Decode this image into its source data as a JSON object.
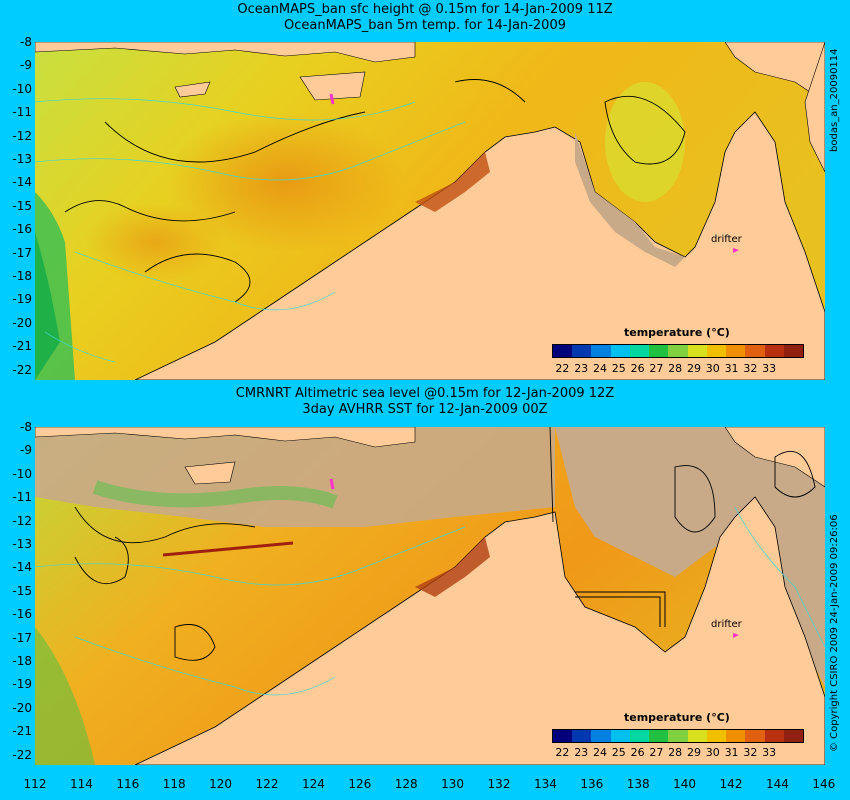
{
  "top": {
    "title_line1": "OceanMAPS_ban sfc height @ 0.15m for 14-Jan-2009 11Z",
    "title_line2": "OceanMAPS_ban 5m temp. for 14-Jan-2009",
    "side_label": "bodas_an_20090114",
    "drifter_label": "drifter",
    "colorbar_title": "temperature (°C)"
  },
  "bottom": {
    "title_line1": "CMRNRT Altimetric sea level  @0.15m  for 12-Jan-2009 12Z",
    "title_line2": "3day AVHRR SST for 12-Jan-2009 00Z",
    "side_label": "© Copyright CSIRO 2009   24-Jan-2009 09:26:06",
    "drifter_label": "drifter",
    "colorbar_title": "temperature (°C)"
  },
  "y_ticks": [
    "-8",
    "-9",
    "-10",
    "-11",
    "-12",
    "-13",
    "-14",
    "-15",
    "-16",
    "-17",
    "-18",
    "-19",
    "-20",
    "-21",
    "-22"
  ],
  "x_ticks": [
    "112",
    "114",
    "116",
    "118",
    "120",
    "122",
    "124",
    "126",
    "128",
    "130",
    "132",
    "134",
    "136",
    "138",
    "140",
    "142",
    "144",
    "146"
  ],
  "colorbar_ticks": [
    "22",
    "23",
    "24",
    "25",
    "26",
    "27",
    "28",
    "29",
    "30",
    "31",
    "32",
    "33"
  ],
  "colorbar_colors": [
    "#00007a",
    "#0038b0",
    "#0080e0",
    "#00c0f0",
    "#00d8a0",
    "#20c040",
    "#80d040",
    "#d8e020",
    "#f0c000",
    "#f09000",
    "#e06010",
    "#b83010",
    "#902010"
  ],
  "colors": {
    "background": "#00ccff",
    "land": "#ffcc99",
    "coast_shelf": "#c8aa88",
    "drifter": "#ff33cc"
  }
}
